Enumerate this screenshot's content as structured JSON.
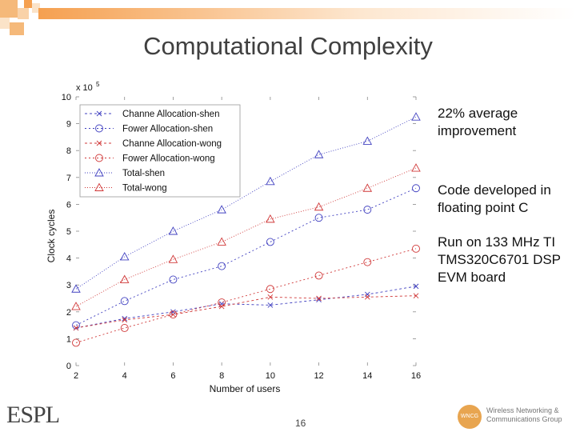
{
  "slide": {
    "title": "Computational Complexity",
    "notes": [
      "22% average improvement",
      "Code developed in floating point C",
      "Run on 133 MHz TI TMS320C6701 DSP EVM board"
    ],
    "page_number": "16",
    "logo_left_text": "ESPL",
    "logo_right_badge": "WNCG",
    "logo_right_text": "Wireless Networking & Communications Group",
    "colors": {
      "accent": "#f5b97a",
      "series_blue": "#4040c0",
      "series_red": "#d03838"
    }
  },
  "chart_data": {
    "type": "line",
    "xlabel": "Number of users",
    "ylabel": "Clock cycles",
    "yexponent": "x 10^5",
    "xlim": [
      2,
      16
    ],
    "ylim": [
      0,
      10
    ],
    "xticks": [
      2,
      4,
      6,
      8,
      10,
      12,
      14,
      16
    ],
    "yticks": [
      0,
      1,
      2,
      3,
      4,
      5,
      6,
      7,
      8,
      9,
      10
    ],
    "grid": false,
    "legend_position": "top-left",
    "series": [
      {
        "name": "Channe Allocation-shen",
        "marker": "x",
        "color": "#4040c0",
        "dash": "3,3",
        "x": [
          2,
          4,
          6,
          8,
          10,
          12,
          14,
          16
        ],
        "y": [
          1.4,
          1.75,
          2.0,
          2.3,
          2.25,
          2.45,
          2.65,
          2.95
        ]
      },
      {
        "name": "Fower Allocation-shen",
        "marker": "o",
        "color": "#4040c0",
        "dash": "2,3",
        "x": [
          2,
          4,
          6,
          8,
          10,
          12,
          14,
          16
        ],
        "y": [
          1.5,
          2.4,
          3.2,
          3.7,
          4.6,
          5.5,
          5.8,
          6.6
        ]
      },
      {
        "name": "Channe Allocation-wong",
        "marker": "x",
        "color": "#d03838",
        "dash": "3,3",
        "x": [
          2,
          4,
          6,
          8,
          10,
          12,
          14,
          16
        ],
        "y": [
          1.4,
          1.7,
          1.9,
          2.2,
          2.55,
          2.5,
          2.55,
          2.6
        ]
      },
      {
        "name": "Fower Allocation-wong",
        "marker": "o",
        "color": "#d03838",
        "dash": "2,3",
        "x": [
          2,
          4,
          6,
          8,
          10,
          12,
          14,
          16
        ],
        "y": [
          0.85,
          1.4,
          1.9,
          2.35,
          2.85,
          3.35,
          3.85,
          4.35
        ]
      },
      {
        "name": "Total-shen",
        "marker": "triangle",
        "color": "#4040c0",
        "dash": "1,2",
        "x": [
          2,
          4,
          6,
          8,
          10,
          12,
          14,
          16
        ],
        "y": [
          2.85,
          4.05,
          5.0,
          5.8,
          6.85,
          7.85,
          8.35,
          9.25
        ]
      },
      {
        "name": "Total-wong",
        "marker": "triangle",
        "color": "#d03838",
        "dash": "1,2",
        "x": [
          2,
          4,
          6,
          8,
          10,
          12,
          14,
          16
        ],
        "y": [
          2.2,
          3.2,
          3.95,
          4.6,
          5.45,
          5.9,
          6.6,
          7.35
        ]
      }
    ]
  }
}
